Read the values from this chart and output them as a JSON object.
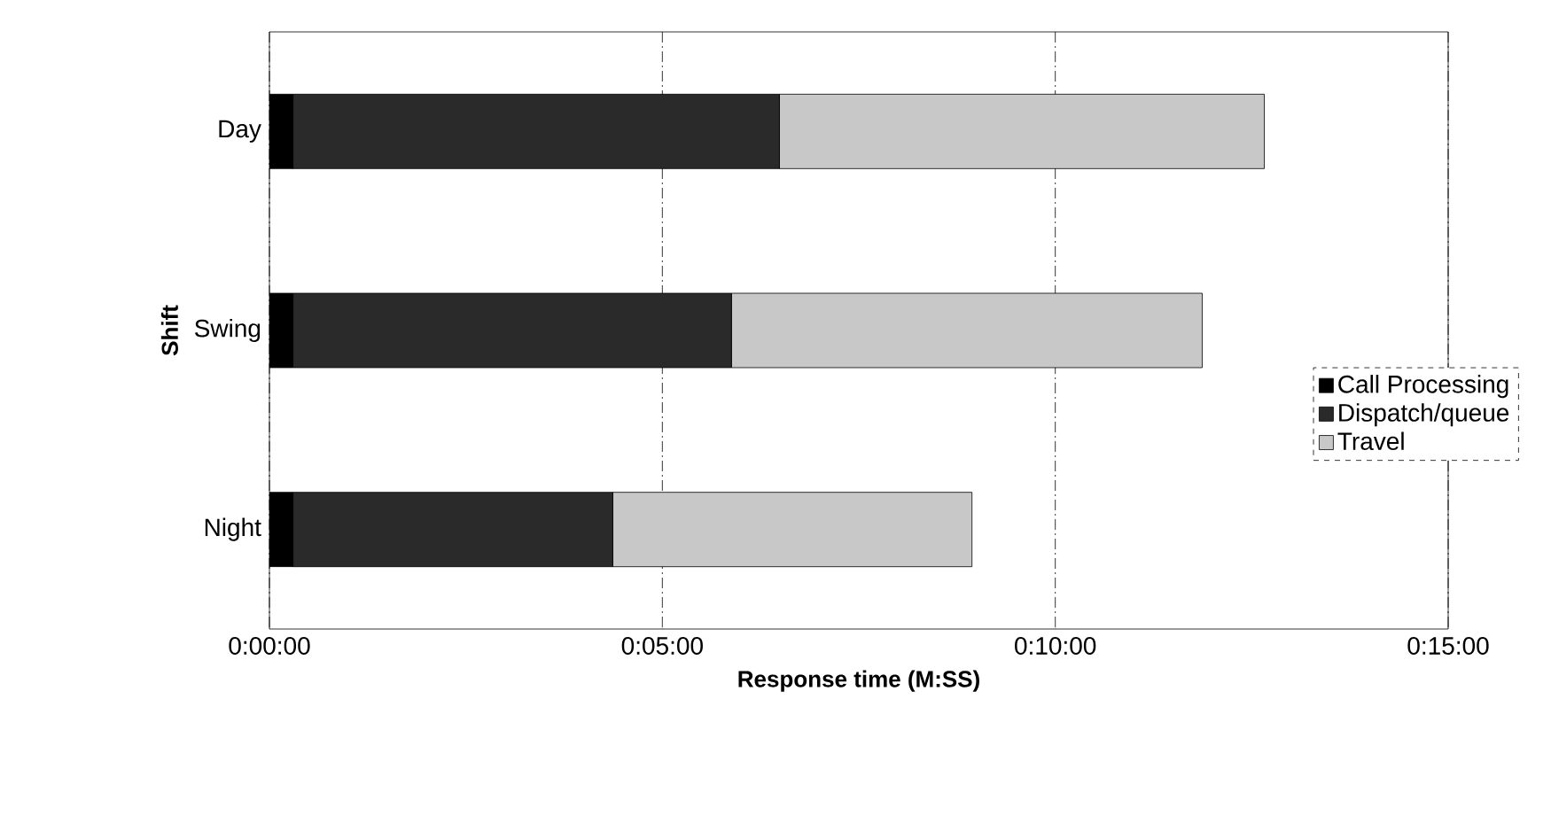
{
  "chart_data": {
    "type": "bar",
    "orientation": "horizontal",
    "stacked": true,
    "xlabel": "Response time (M:SS)",
    "ylabel": "Shift",
    "categories": [
      "Day",
      "Swing",
      "Night"
    ],
    "series": [
      {
        "name": "Call Processing",
        "color": "#000000",
        "values": [
          0.3,
          0.3,
          0.3
        ]
      },
      {
        "name": "Dispatch/queue",
        "color": "#2a2a2a",
        "values": [
          6.19,
          5.58,
          4.07
        ]
      },
      {
        "name": "Travel",
        "color": "#c8c8c8",
        "values": [
          6.17,
          5.99,
          4.57
        ]
      }
    ],
    "xlim": [
      0,
      15
    ],
    "xticks": [
      {
        "value": 0,
        "label": "0:00:00"
      },
      {
        "value": 5,
        "label": "0:05:00"
      },
      {
        "value": 10,
        "label": "0:10:00"
      },
      {
        "value": 15,
        "label": "0:15:00"
      }
    ],
    "grid": "x",
    "legend": "right"
  }
}
